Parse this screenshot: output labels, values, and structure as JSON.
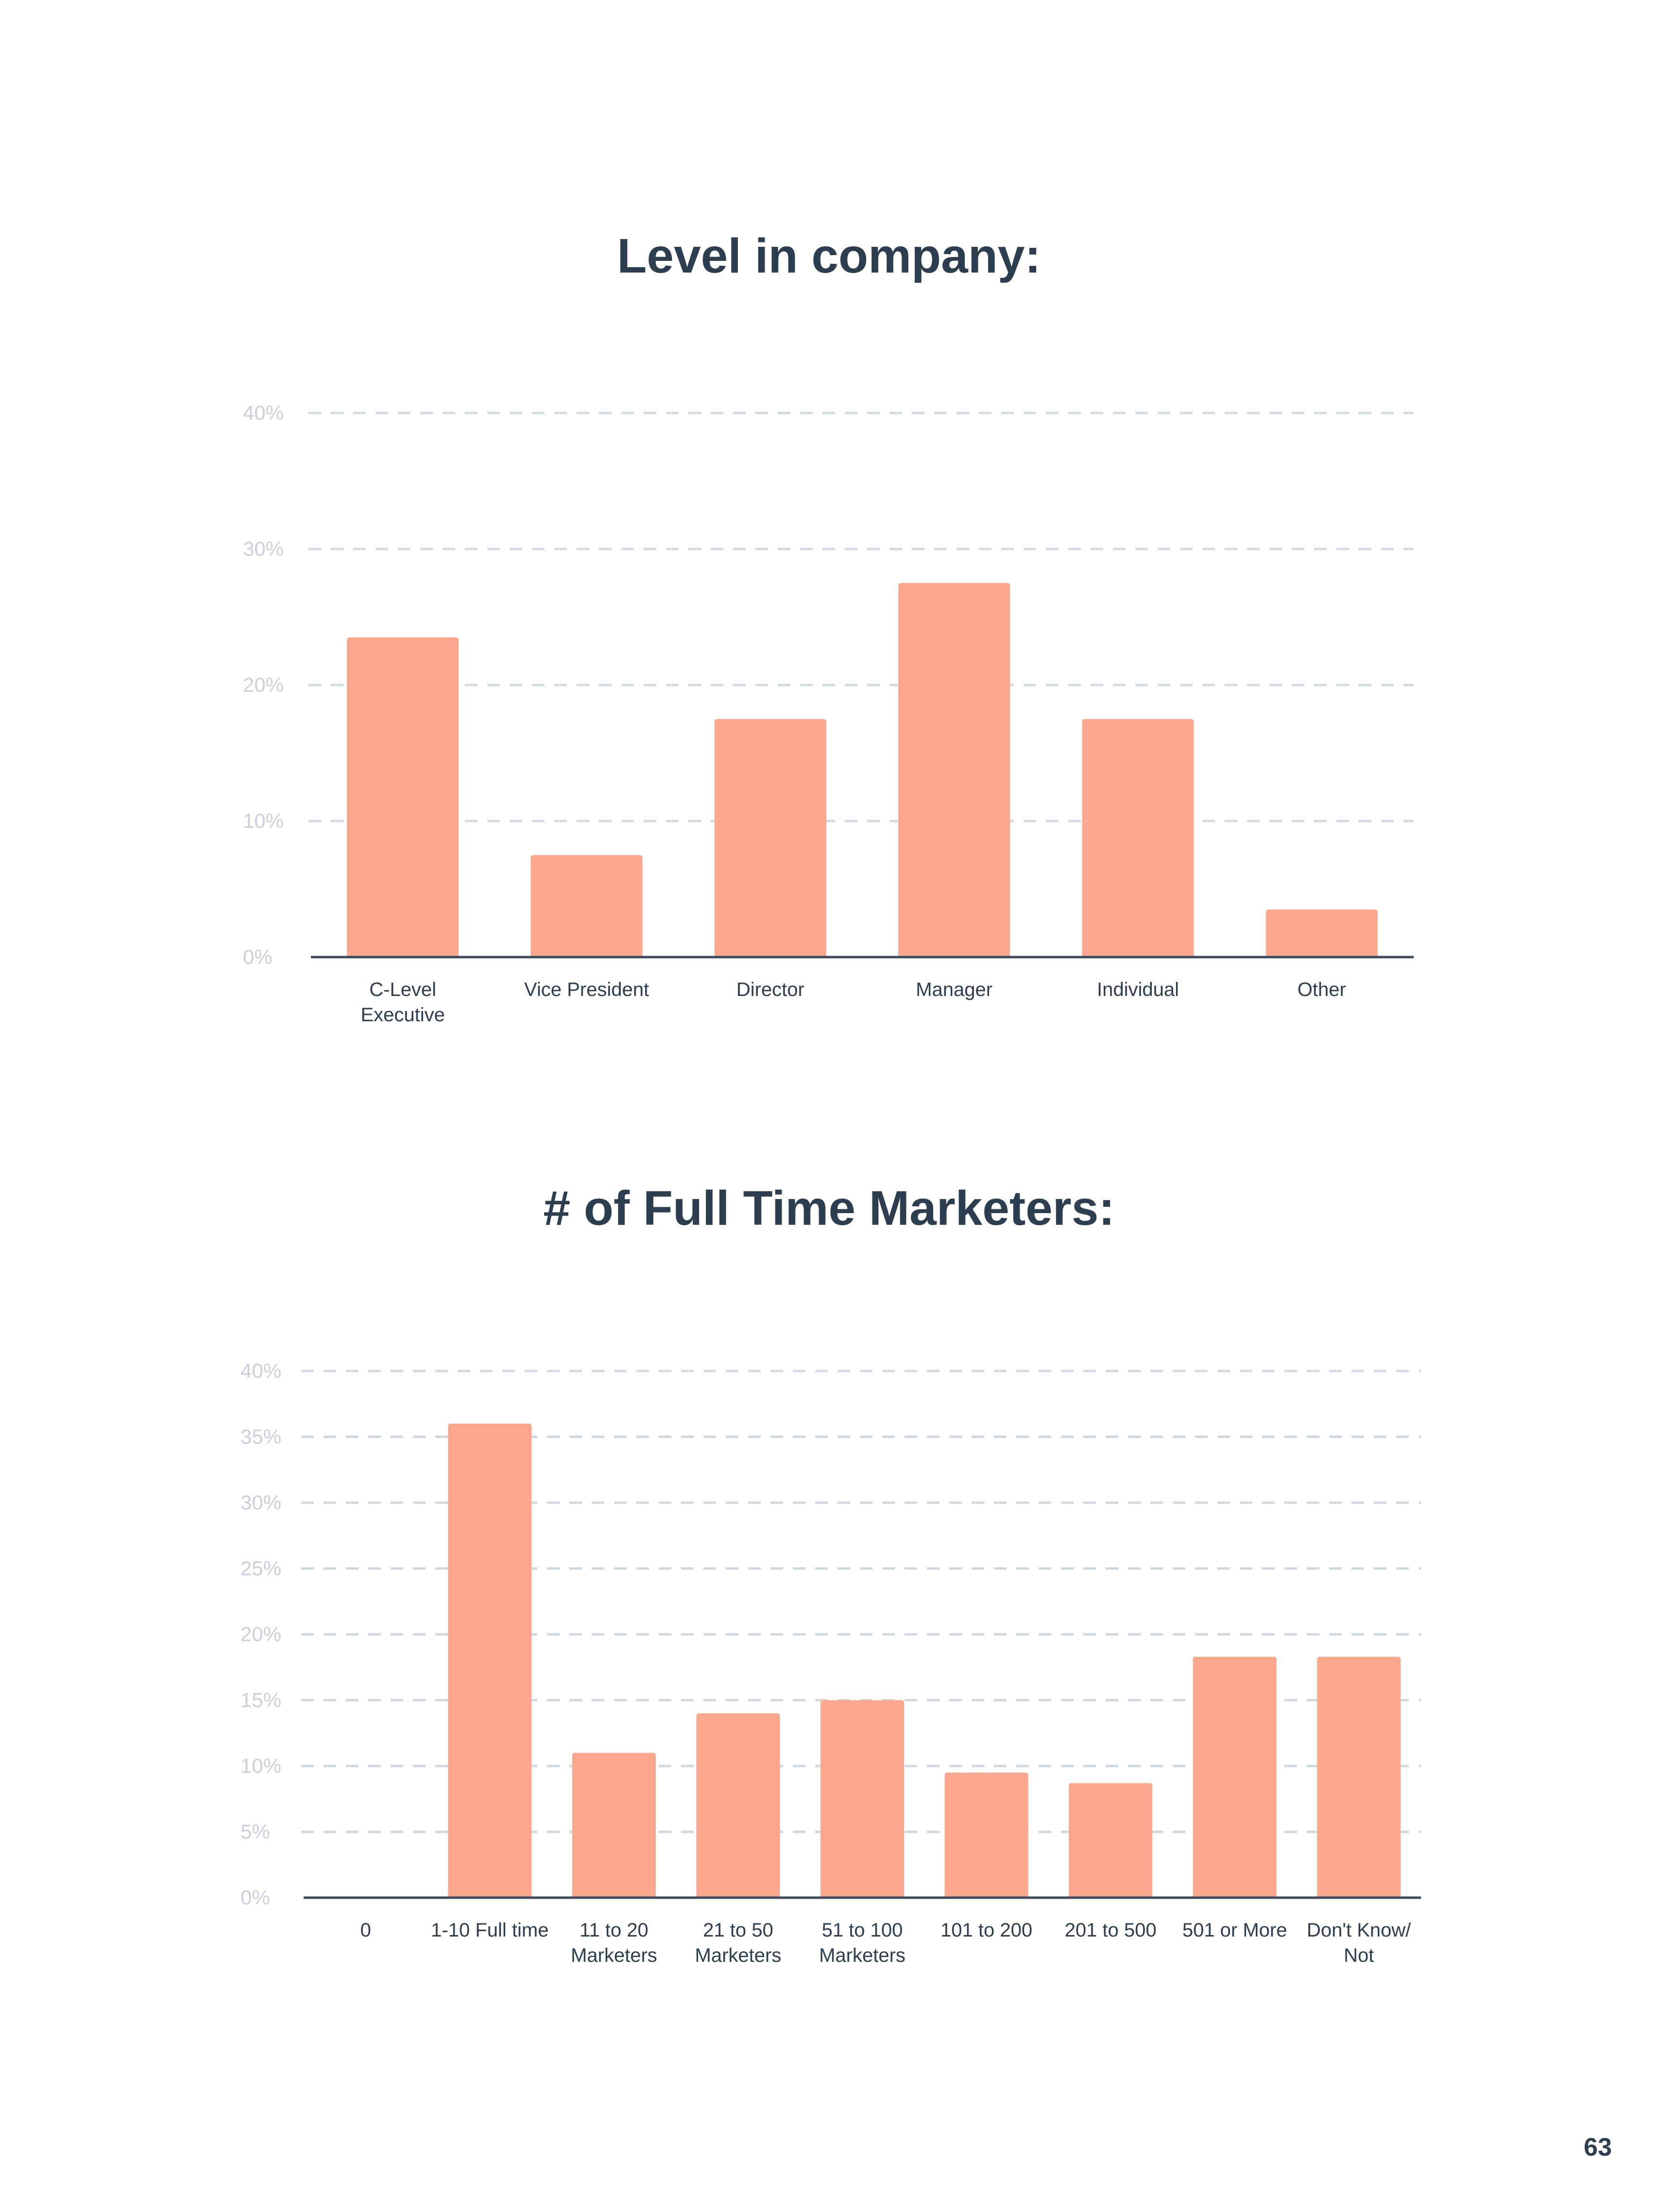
{
  "page": {
    "number": "63"
  },
  "colors": {
    "bar": "#fba78d",
    "title": "#2d3e50",
    "grid": "#d2d9e3",
    "ticks": "#c7d0dc",
    "axis": "#3d4a5c",
    "labels": "#2d3e50"
  },
  "chart_data": [
    {
      "type": "bar",
      "title": "Level in company:",
      "xlabel": "",
      "ylabel": "",
      "categories": [
        [
          "C-Level",
          "Executive"
        ],
        [
          "Vice President"
        ],
        [
          "Director"
        ],
        [
          "Manager"
        ],
        [
          "Individual"
        ],
        [
          "Other"
        ]
      ],
      "values": [
        23.5,
        7.5,
        17.5,
        27.5,
        17.5,
        3.5
      ],
      "yticks": [
        "0%",
        "10%",
        "20%",
        "30%",
        "40%"
      ],
      "ytick_values": [
        0,
        10,
        20,
        30,
        40
      ],
      "ylim": [
        0,
        40
      ],
      "grid": true,
      "legend": "none"
    },
    {
      "type": "bar",
      "title": "# of Full Time Marketers:",
      "xlabel": "",
      "ylabel": "",
      "categories": [
        [
          "0"
        ],
        [
          "1-10 Full time"
        ],
        [
          "11 to 20",
          "Marketers"
        ],
        [
          "21 to 50",
          "Marketers"
        ],
        [
          "51 to 100",
          "Marketers"
        ],
        [
          "101 to 200"
        ],
        [
          "201 to 500"
        ],
        [
          "501 or More"
        ],
        [
          "Don't Know/",
          "Not"
        ]
      ],
      "values": [
        0,
        36,
        11,
        14,
        15,
        9.5,
        8.7,
        18.3,
        18.3
      ],
      "yticks": [
        "0%",
        "5%",
        "10%",
        "15%",
        "20%",
        "25%",
        "30%",
        "35%",
        "40%"
      ],
      "ytick_values": [
        0,
        5,
        10,
        15,
        20,
        25,
        30,
        35,
        40
      ],
      "ylim": [
        0,
        40
      ],
      "grid": true,
      "legend": "none"
    }
  ]
}
